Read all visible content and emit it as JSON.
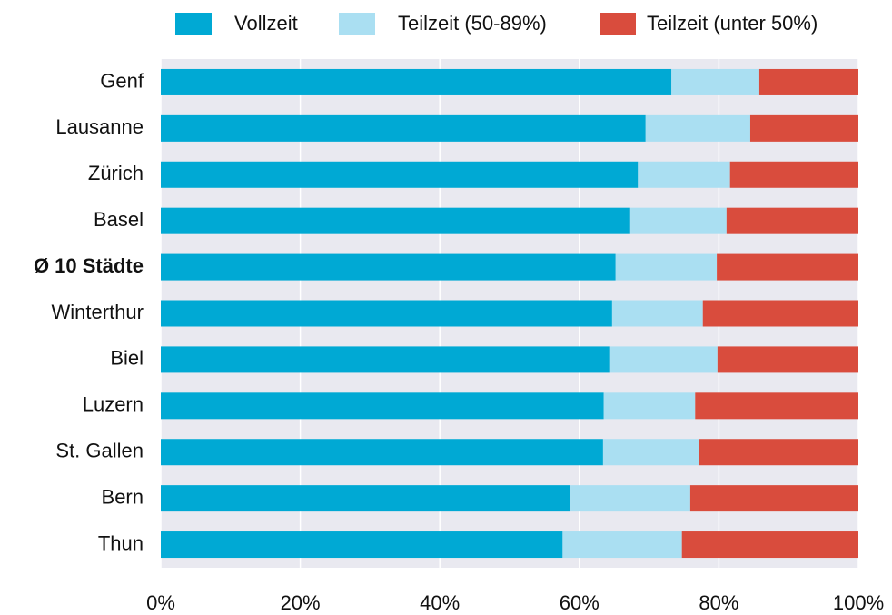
{
  "chart_data": {
    "type": "stacked_barh",
    "categories": [
      "Genf",
      "Lausanne",
      "Zürich",
      "Basel",
      "Ø 10 Städte",
      "Winterthur",
      "Biel",
      "Luzern",
      "St. Gallen",
      "Bern",
      "Thun"
    ],
    "highlight": "Ø 10 Städte",
    "series": [
      {
        "name": "Vollzeit",
        "color": "#00a9d4",
        "values": [
          73.2,
          69.5,
          68.4,
          67.3,
          65.2,
          64.7,
          64.3,
          63.5,
          63.4,
          58.7,
          57.6
        ]
      },
      {
        "name": "Teilzeit (50-89%)",
        "color": "#aadff2",
        "values": [
          12.6,
          15.0,
          13.2,
          13.8,
          14.5,
          13.0,
          15.5,
          13.1,
          13.8,
          17.2,
          17.1
        ]
      },
      {
        "name": "Teilzeit (unter 50%)",
        "color": "#d94c3d",
        "values": [
          14.2,
          15.5,
          18.4,
          18.9,
          20.3,
          22.3,
          20.2,
          23.4,
          22.8,
          24.1,
          25.3
        ]
      }
    ],
    "xlim": [
      0,
      100
    ],
    "xticks": [
      {
        "value": 0,
        "label": "0%"
      },
      {
        "value": 20,
        "label": "20%"
      },
      {
        "value": 40,
        "label": "40%"
      },
      {
        "value": 60,
        "label": "60%"
      },
      {
        "value": 80,
        "label": "80%"
      },
      {
        "value": 100,
        "label": "100%"
      }
    ],
    "grid": true
  }
}
